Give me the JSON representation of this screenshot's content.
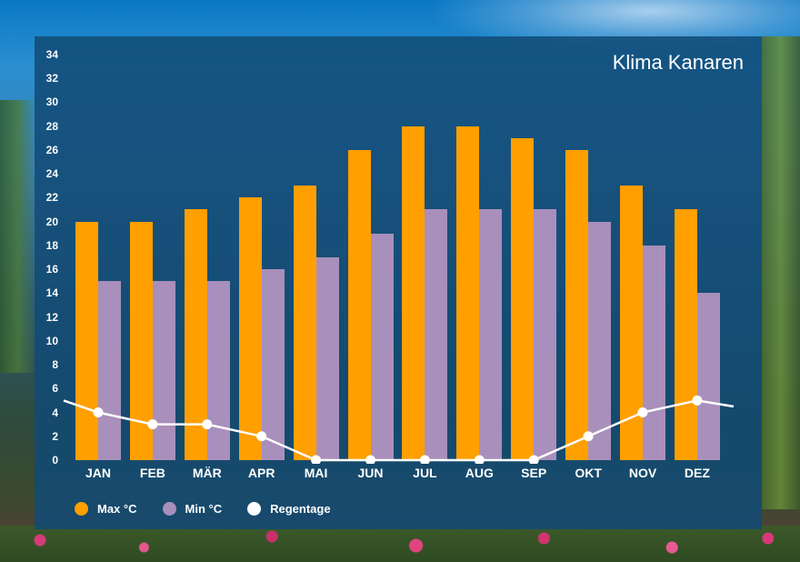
{
  "title": "Klima Kanaren",
  "colors": {
    "max": "#ff9f00",
    "min": "#a98fbb",
    "rain": "#ffffff",
    "panel": "#124a76"
  },
  "legend": [
    {
      "label": "Max °C",
      "color": "#ff9f00"
    },
    {
      "label": "Min °C",
      "color": "#a98fbb"
    },
    {
      "label": "Regentage",
      "color": "#ffffff"
    }
  ],
  "y_ticks": [
    "0",
    "2",
    "4",
    "6",
    "8",
    "10",
    "12",
    "14",
    "16",
    "18",
    "20",
    "22",
    "24",
    "26",
    "28",
    "30",
    "32",
    "34"
  ],
  "months": [
    "JAN",
    "FEB",
    "MÄR",
    "APR",
    "MAI",
    "JUN",
    "JUL",
    "AUG",
    "SEP",
    "OKT",
    "NOV",
    "DEZ"
  ],
  "chart_data": {
    "type": "bar",
    "title": "Klima Kanaren",
    "categories": [
      "JAN",
      "FEB",
      "MÄR",
      "APR",
      "MAI",
      "JUN",
      "JUL",
      "AUG",
      "SEP",
      "OKT",
      "NOV",
      "DEZ"
    ],
    "series": [
      {
        "name": "Max °C",
        "type": "bar",
        "values": [
          20,
          20,
          21,
          22,
          23,
          26,
          28,
          28,
          27,
          26,
          23,
          21
        ]
      },
      {
        "name": "Min °C",
        "type": "bar",
        "values": [
          15,
          15,
          15,
          16,
          17,
          19,
          21,
          21,
          21,
          20,
          18,
          14
        ]
      },
      {
        "name": "Regentage",
        "type": "line",
        "values": [
          4,
          3,
          3,
          2,
          0,
          0,
          0,
          0,
          0,
          2,
          4,
          5
        ]
      }
    ],
    "xlabel": "",
    "ylabel": "",
    "ylim": [
      0,
      34
    ],
    "y_tick_step": 2,
    "grid": false,
    "legend_position": "bottom-left"
  }
}
